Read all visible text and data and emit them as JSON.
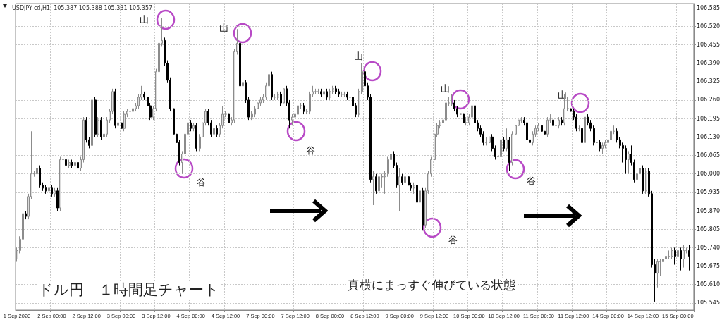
{
  "chart_data": {
    "type": "candlestick",
    "title": "USDJPY-cd,H1  105.387 105.388 105.331 105.357",
    "categories": [
      "1 Sep 2020",
      null,
      null,
      null,
      null,
      null,
      null,
      null,
      null,
      null,
      null,
      null,
      "2 Sep 00:00",
      null,
      null,
      null,
      null,
      null,
      null,
      null,
      null,
      null,
      null,
      null,
      "2 Sep 12:00",
      null,
      null,
      null,
      null,
      null,
      null,
      null,
      null,
      null,
      null,
      null,
      "3 Sep 00:00",
      null,
      null,
      null,
      null,
      null,
      null,
      null,
      null,
      null,
      null,
      null,
      "3 Sep 12:00",
      null,
      null,
      null,
      null,
      null,
      null,
      null,
      null,
      null,
      null,
      null,
      "4 Sep 00:00",
      null,
      null,
      null,
      null,
      null,
      null,
      null,
      null,
      null,
      null,
      null,
      "4 Sep 12:00",
      null,
      null,
      null,
      null,
      null,
      null,
      null,
      null,
      null,
      null,
      null,
      "7 Sep 00:00",
      null,
      null,
      null,
      null,
      null,
      null,
      null,
      null,
      null,
      null,
      null,
      "7 Sep 12:00",
      null,
      null,
      null,
      null,
      null,
      null,
      null,
      null,
      null,
      null,
      null,
      "8 Sep 00:00",
      null,
      null,
      null,
      null,
      null,
      null,
      null,
      null,
      null,
      null,
      null,
      "8 Sep 12:00",
      null,
      null,
      null,
      null,
      null,
      null,
      null,
      null,
      null,
      null,
      null,
      "9 Sep 00:00",
      null,
      null,
      null,
      null,
      null,
      null,
      null,
      null,
      null,
      null,
      null,
      "9 Sep 12:00",
      null,
      null,
      null,
      null,
      null,
      null,
      null,
      null,
      null,
      null,
      null,
      "10 Sep 00:00",
      null,
      null,
      null,
      null,
      null,
      null,
      null,
      null,
      null,
      null,
      null,
      "10 Sep 12:00",
      null,
      null,
      null,
      null,
      null,
      null,
      null,
      null,
      null,
      null,
      null,
      "11 Sep 00:00",
      null,
      null,
      null,
      null,
      null,
      null,
      null,
      null,
      null,
      null,
      null,
      "11 Sep 12:00",
      null,
      null,
      null,
      null,
      null,
      null,
      null,
      null,
      null,
      null,
      null,
      "14 Sep 00:00",
      null,
      null,
      null,
      null,
      null,
      null,
      null,
      null,
      null,
      null,
      null,
      "14 Sep 12:00",
      null,
      null,
      null,
      null,
      null,
      null,
      null,
      null,
      null,
      null,
      null,
      "15 Sep 00:00",
      null,
      null,
      null,
      null
    ],
    "ohlc": [
      [
        105.7,
        105.74,
        105.69,
        105.73
      ],
      [
        105.73,
        105.78,
        105.72,
        105.77
      ],
      [
        105.77,
        105.87,
        105.76,
        105.86
      ],
      [
        105.86,
        105.87,
        105.84,
        105.85
      ],
      [
        105.85,
        105.93,
        105.84,
        105.92
      ],
      [
        105.92,
        106.15,
        105.91,
        106.0
      ],
      [
        106.0,
        106.01,
        105.99,
        106.0
      ],
      [
        106.0,
        106.03,
        105.99,
        106.02
      ],
      [
        106.02,
        106.03,
        105.95,
        105.96
      ],
      [
        105.96,
        105.97,
        105.94,
        105.95
      ],
      [
        105.95,
        105.96,
        105.93,
        105.94
      ],
      [
        105.94,
        105.96,
        105.93,
        105.95
      ],
      [
        105.95,
        105.96,
        105.92,
        105.93
      ],
      [
        105.93,
        105.95,
        105.92,
        105.94
      ],
      [
        105.94,
        105.95,
        105.87,
        105.88
      ],
      [
        105.88,
        106.06,
        105.87,
        106.05
      ],
      [
        106.05,
        106.06,
        106.04,
        106.05
      ],
      [
        106.05,
        106.06,
        106.02,
        106.03
      ],
      [
        106.03,
        106.05,
        106.02,
        106.04
      ],
      [
        106.04,
        106.05,
        106.02,
        106.03
      ],
      [
        106.03,
        106.05,
        106.02,
        106.04
      ],
      [
        106.04,
        106.05,
        106.01,
        106.02
      ],
      [
        106.02,
        106.06,
        106.01,
        106.05
      ],
      [
        106.05,
        106.2,
        106.04,
        106.19
      ],
      [
        106.19,
        106.2,
        106.11,
        106.12
      ],
      [
        106.12,
        106.13,
        106.09,
        106.1
      ],
      [
        106.1,
        106.28,
        106.09,
        106.26
      ],
      [
        106.26,
        106.27,
        106.13,
        106.14
      ],
      [
        106.14,
        106.2,
        106.13,
        106.19
      ],
      [
        106.19,
        106.2,
        106.12,
        106.13
      ],
      [
        106.13,
        106.15,
        106.12,
        106.14
      ],
      [
        106.14,
        106.2,
        106.13,
        106.19
      ],
      [
        106.19,
        106.23,
        106.18,
        106.22
      ],
      [
        106.22,
        106.3,
        106.21,
        106.29
      ],
      [
        106.29,
        106.3,
        106.16,
        106.17
      ],
      [
        106.17,
        106.19,
        106.16,
        106.18
      ],
      [
        106.18,
        106.19,
        106.15,
        106.16
      ],
      [
        106.16,
        106.22,
        106.15,
        106.21
      ],
      [
        106.21,
        106.23,
        106.2,
        106.22
      ],
      [
        106.22,
        106.23,
        106.21,
        106.22
      ],
      [
        106.22,
        106.24,
        106.21,
        106.23
      ],
      [
        106.23,
        106.25,
        106.22,
        106.24
      ],
      [
        106.24,
        106.28,
        106.23,
        106.27
      ],
      [
        106.27,
        106.31,
        106.26,
        106.28
      ],
      [
        106.28,
        106.29,
        106.26,
        106.27
      ],
      [
        106.27,
        106.28,
        106.23,
        106.24
      ],
      [
        106.24,
        106.25,
        106.19,
        106.2
      ],
      [
        106.2,
        106.24,
        106.19,
        106.23
      ],
      [
        106.23,
        106.37,
        106.22,
        106.36
      ],
      [
        106.36,
        106.47,
        106.35,
        106.46
      ],
      [
        106.46,
        106.55,
        106.45,
        106.47
      ],
      [
        106.47,
        106.48,
        106.38,
        106.39
      ],
      [
        106.39,
        106.4,
        106.32,
        106.33
      ],
      [
        106.33,
        106.34,
        106.22,
        106.23
      ],
      [
        106.23,
        106.24,
        106.13,
        106.14
      ],
      [
        106.14,
        106.15,
        106.1,
        106.11
      ],
      [
        106.11,
        106.12,
        106.03,
        106.04
      ],
      [
        106.04,
        106.08,
        106.0,
        106.07
      ],
      [
        106.07,
        106.15,
        106.06,
        106.14
      ],
      [
        106.14,
        106.19,
        106.13,
        106.18
      ],
      [
        106.18,
        106.19,
        106.15,
        106.16
      ],
      [
        106.16,
        106.18,
        106.15,
        106.17
      ],
      [
        106.17,
        106.18,
        106.08,
        106.09
      ],
      [
        106.09,
        106.14,
        106.08,
        106.13
      ],
      [
        106.13,
        106.19,
        106.12,
        106.18
      ],
      [
        106.18,
        106.23,
        106.17,
        106.22
      ],
      [
        106.22,
        106.23,
        106.17,
        106.18
      ],
      [
        106.18,
        106.19,
        106.13,
        106.14
      ],
      [
        106.14,
        106.17,
        106.13,
        106.16
      ],
      [
        106.16,
        106.17,
        106.13,
        106.14
      ],
      [
        106.14,
        106.18,
        106.13,
        106.17
      ],
      [
        106.17,
        106.24,
        106.16,
        106.21
      ],
      [
        106.21,
        106.22,
        106.2,
        106.21
      ],
      [
        106.21,
        106.22,
        106.17,
        106.18
      ],
      [
        106.18,
        106.2,
        106.17,
        106.19
      ],
      [
        106.19,
        106.44,
        106.18,
        106.43
      ],
      [
        106.43,
        106.51,
        106.42,
        106.46
      ],
      [
        106.46,
        106.47,
        106.3,
        106.31
      ],
      [
        106.31,
        106.33,
        106.28,
        106.32
      ],
      [
        106.32,
        106.33,
        106.25,
        106.26
      ],
      [
        106.26,
        106.27,
        106.19,
        106.2
      ],
      [
        106.2,
        106.22,
        106.19,
        106.21
      ],
      [
        106.21,
        106.24,
        106.2,
        106.23
      ],
      [
        106.23,
        106.26,
        106.22,
        106.25
      ],
      [
        106.25,
        106.27,
        106.24,
        106.26
      ],
      [
        106.26,
        106.28,
        106.25,
        106.27
      ],
      [
        106.27,
        106.32,
        106.26,
        106.31
      ],
      [
        106.31,
        106.38,
        106.3,
        106.35
      ],
      [
        106.35,
        106.36,
        106.26,
        106.27
      ],
      [
        106.27,
        106.28,
        106.26,
        106.27
      ],
      [
        106.27,
        106.29,
        106.26,
        106.28
      ],
      [
        106.28,
        106.29,
        106.24,
        106.25
      ],
      [
        106.25,
        106.31,
        106.24,
        106.3
      ],
      [
        106.3,
        106.31,
        106.24,
        106.25
      ],
      [
        106.25,
        106.26,
        106.16,
        106.19
      ],
      [
        106.19,
        106.21,
        106.17,
        106.2
      ],
      [
        106.2,
        106.22,
        106.19,
        106.21
      ],
      [
        106.21,
        106.25,
        106.2,
        106.24
      ],
      [
        106.24,
        106.25,
        106.23,
        106.24
      ],
      [
        106.24,
        106.25,
        106.21,
        106.22
      ],
      [
        106.22,
        106.23,
        106.21,
        106.22
      ],
      [
        106.22,
        106.29,
        106.21,
        106.28
      ],
      [
        106.28,
        106.31,
        106.27,
        106.29
      ],
      [
        106.29,
        106.3,
        106.28,
        106.29
      ],
      [
        106.29,
        106.3,
        106.28,
        106.29
      ],
      [
        106.29,
        106.3,
        106.27,
        106.28
      ],
      [
        106.28,
        106.3,
        106.27,
        106.29
      ],
      [
        106.29,
        106.3,
        106.26,
        106.27
      ],
      [
        106.27,
        106.3,
        106.26,
        106.29
      ],
      [
        106.29,
        106.31,
        106.28,
        106.3
      ],
      [
        106.3,
        106.31,
        106.28,
        106.29
      ],
      [
        106.29,
        106.3,
        106.27,
        106.28
      ],
      [
        106.28,
        106.29,
        106.27,
        106.28
      ],
      [
        106.28,
        106.29,
        106.27,
        106.28
      ],
      [
        106.28,
        106.29,
        106.26,
        106.27
      ],
      [
        106.27,
        106.28,
        106.26,
        106.27
      ],
      [
        106.27,
        106.28,
        106.23,
        106.24
      ],
      [
        106.24,
        106.25,
        106.2,
        106.21
      ],
      [
        106.21,
        106.3,
        106.2,
        106.29
      ],
      [
        106.29,
        106.39,
        106.28,
        106.36
      ],
      [
        106.36,
        106.37,
        106.3,
        106.31
      ],
      [
        106.31,
        106.32,
        106.26,
        106.27
      ],
      [
        106.27,
        106.28,
        105.97,
        105.98
      ],
      [
        105.98,
        106.01,
        105.89,
        105.99
      ],
      [
        105.99,
        106.0,
        105.93,
        105.94
      ],
      [
        105.94,
        106.0,
        105.88,
        105.99
      ],
      [
        105.99,
        106.0,
        105.95,
        105.99
      ],
      [
        105.99,
        106.01,
        105.93,
        106.0
      ],
      [
        106.0,
        106.06,
        105.99,
        106.05
      ],
      [
        106.05,
        106.08,
        106.04,
        106.07
      ],
      [
        106.07,
        106.08,
        106.02,
        106.03
      ],
      [
        106.03,
        106.04,
        105.95,
        105.96
      ],
      [
        105.96,
        106.02,
        105.87,
        105.99
      ],
      [
        105.99,
        106.0,
        105.96,
        105.97
      ],
      [
        105.97,
        106.01,
        105.9,
        105.99
      ],
      [
        105.99,
        106.0,
        105.95,
        105.96
      ],
      [
        105.96,
        105.97,
        105.94,
        105.95
      ],
      [
        105.95,
        105.97,
        105.93,
        105.96
      ],
      [
        105.96,
        105.97,
        105.89,
        105.9
      ],
      [
        105.9,
        105.95,
        105.89,
        105.94
      ],
      [
        105.94,
        105.95,
        105.8,
        105.82
      ],
      [
        105.82,
        105.95,
        105.81,
        105.94
      ],
      [
        105.94,
        106.01,
        105.93,
        106.0
      ],
      [
        106.0,
        106.06,
        105.99,
        106.05
      ],
      [
        106.05,
        106.15,
        106.04,
        106.14
      ],
      [
        106.14,
        106.18,
        106.13,
        106.17
      ],
      [
        106.17,
        106.19,
        106.16,
        106.18
      ],
      [
        106.18,
        106.2,
        106.14,
        106.19
      ],
      [
        106.19,
        106.26,
        106.18,
        106.25
      ],
      [
        106.25,
        106.27,
        106.24,
        106.25
      ],
      [
        106.25,
        106.28,
        106.24,
        106.25
      ],
      [
        106.25,
        106.26,
        106.22,
        106.23
      ],
      [
        106.23,
        106.24,
        106.2,
        106.21
      ],
      [
        106.21,
        106.22,
        106.19,
        106.21
      ],
      [
        106.21,
        106.22,
        106.17,
        106.18
      ],
      [
        106.18,
        106.2,
        106.17,
        106.18
      ],
      [
        106.18,
        106.21,
        106.17,
        106.2
      ],
      [
        106.2,
        106.25,
        106.19,
        106.24
      ],
      [
        106.24,
        106.3,
        106.17,
        106.18
      ],
      [
        106.18,
        106.19,
        106.15,
        106.16
      ],
      [
        106.16,
        106.17,
        106.13,
        106.14
      ],
      [
        106.14,
        106.15,
        106.1,
        106.11
      ],
      [
        106.11,
        106.13,
        106.1,
        106.11
      ],
      [
        106.11,
        106.14,
        106.07,
        106.13
      ],
      [
        106.13,
        106.14,
        106.08,
        106.09
      ],
      [
        106.09,
        106.1,
        106.05,
        106.06
      ],
      [
        106.06,
        106.07,
        106.03,
        106.06
      ],
      [
        106.06,
        106.13,
        106.05,
        106.12
      ],
      [
        106.12,
        106.13,
        106.08,
        106.09
      ],
      [
        106.09,
        106.16,
        106.08,
        106.12
      ],
      [
        106.12,
        106.13,
        106.01,
        106.04
      ],
      [
        106.04,
        106.15,
        106.03,
        106.14
      ],
      [
        106.14,
        106.19,
        106.13,
        106.17
      ],
      [
        106.17,
        106.22,
        106.16,
        106.19
      ],
      [
        106.19,
        106.2,
        106.18,
        106.19
      ],
      [
        106.19,
        106.2,
        106.17,
        106.18
      ],
      [
        106.18,
        106.19,
        106.11,
        106.12
      ],
      [
        106.12,
        106.13,
        106.09,
        106.11
      ],
      [
        106.11,
        106.15,
        106.1,
        106.14
      ],
      [
        106.14,
        106.17,
        106.13,
        106.16
      ],
      [
        106.16,
        106.18,
        106.15,
        106.17
      ],
      [
        106.17,
        106.18,
        106.14,
        106.15
      ],
      [
        106.15,
        106.16,
        106.1,
        106.14
      ],
      [
        106.14,
        106.2,
        106.13,
        106.19
      ],
      [
        106.19,
        106.21,
        106.18,
        106.19
      ],
      [
        106.19,
        106.2,
        106.16,
        106.17
      ],
      [
        106.17,
        106.18,
        106.16,
        106.17
      ],
      [
        106.17,
        106.2,
        106.16,
        106.19
      ],
      [
        106.19,
        106.2,
        106.17,
        106.18
      ],
      [
        106.18,
        106.28,
        106.17,
        106.23
      ],
      [
        106.23,
        106.27,
        106.22,
        106.23
      ],
      [
        106.23,
        106.24,
        106.21,
        106.22
      ],
      [
        106.22,
        106.23,
        106.19,
        106.2
      ],
      [
        106.2,
        106.21,
        106.15,
        106.16
      ],
      [
        106.16,
        106.17,
        106.15,
        106.16
      ],
      [
        106.16,
        106.17,
        106.06,
        106.11
      ],
      [
        106.11,
        106.21,
        106.1,
        106.2
      ],
      [
        106.2,
        106.21,
        106.17,
        106.18
      ],
      [
        106.18,
        106.19,
        106.15,
        106.16
      ],
      [
        106.16,
        106.17,
        106.1,
        106.11
      ],
      [
        106.11,
        106.12,
        106.04,
        106.11
      ],
      [
        106.11,
        106.12,
        106.08,
        106.09
      ],
      [
        106.09,
        106.11,
        106.07,
        106.1
      ],
      [
        106.1,
        106.12,
        106.09,
        106.11
      ],
      [
        106.11,
        106.13,
        106.1,
        106.12
      ],
      [
        106.12,
        106.16,
        106.11,
        106.15
      ],
      [
        106.15,
        106.17,
        106.14,
        106.15
      ],
      [
        106.15,
        106.16,
        106.11,
        106.12
      ],
      [
        106.12,
        106.13,
        106.09,
        106.1
      ],
      [
        106.1,
        106.11,
        106.04,
        106.09
      ],
      [
        106.09,
        106.1,
        106.0,
        106.05
      ],
      [
        106.05,
        106.08,
        106.0,
        106.07
      ],
      [
        106.07,
        106.1,
        106.03,
        106.04
      ],
      [
        106.04,
        106.05,
        105.97,
        105.98
      ],
      [
        105.98,
        106.01,
        105.91,
        106.0
      ],
      [
        106.0,
        106.03,
        105.99,
        106.02
      ],
      [
        106.02,
        106.03,
        105.93,
        105.94
      ],
      [
        105.94,
        106.02,
        105.93,
        106.01
      ],
      [
        106.01,
        106.02,
        105.92,
        105.93
      ],
      [
        105.93,
        105.94,
        105.67,
        105.68
      ],
      [
        105.68,
        105.7,
        105.55,
        105.65
      ],
      [
        105.65,
        105.7,
        105.6,
        105.69
      ],
      [
        105.69,
        105.7,
        105.64,
        105.69
      ],
      [
        105.69,
        105.71,
        105.66,
        105.7
      ],
      [
        105.7,
        105.72,
        105.69,
        105.71
      ],
      [
        105.71,
        105.73,
        105.7,
        105.71
      ],
      [
        105.71,
        105.74,
        105.7,
        105.73
      ],
      [
        105.73,
        105.74,
        105.68,
        105.71
      ],
      [
        105.71,
        105.74,
        105.67,
        105.73
      ],
      [
        105.73,
        105.74,
        105.66,
        105.7
      ],
      [
        105.7,
        105.75,
        105.67,
        105.73
      ],
      [
        105.73,
        105.74,
        105.72,
        105.73
      ],
      [
        105.73,
        105.75,
        105.66,
        105.71
      ]
    ],
    "ylim": [
      105.52,
      106.6
    ],
    "yticks": [
      106.585,
      {
        "value": 106.52,
        "label": "106.520"
      },
      106.455,
      {
        "value": 106.39,
        "label": "106.390"
      },
      106.325,
      {
        "value": 106.26,
        "label": "106.260"
      },
      106.195,
      {
        "value": 106.13,
        "label": "106.130"
      },
      106.065,
      {
        "value": 106,
        "label": "106.000"
      },
      105.935,
      {
        "value": 105.87,
        "label": "105.870"
      },
      105.805,
      {
        "value": 105.74,
        "label": "105.740"
      },
      105.675,
      {
        "value": 105.61,
        "label": "105.610"
      },
      105.545
    ],
    "grid": true,
    "annotations": [
      "ドル円　１時間足チャート",
      "真横にまっすぐ伸びている状態",
      "山",
      "山",
      "山",
      "山",
      "山",
      "谷",
      "谷",
      "谷",
      "谷"
    ]
  }
}
